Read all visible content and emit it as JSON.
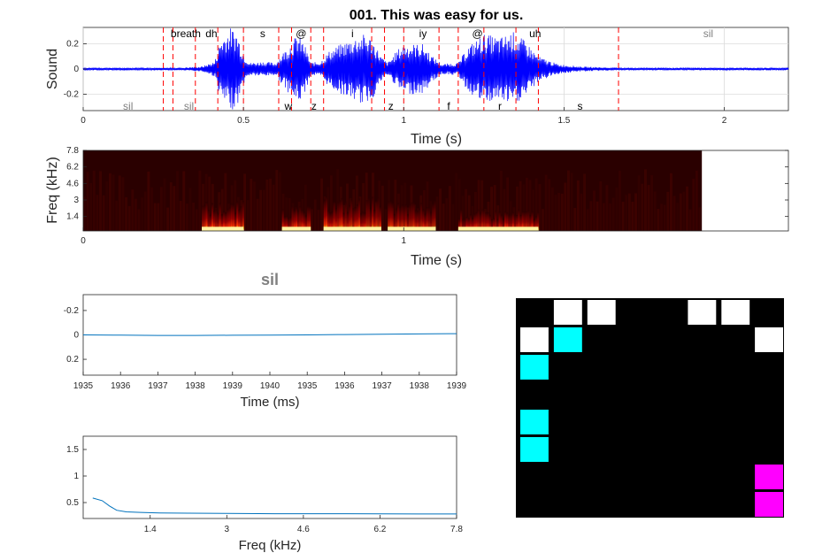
{
  "title": "001. This was easy for us.",
  "colors": {
    "waveform": "#0000ff",
    "boundary": "#ff0000",
    "detail_line": "#0072bd",
    "breath": "#0000ff",
    "silence_label": "#808080",
    "cyan": "#00ffff",
    "magenta": "#ff00ff"
  },
  "chart_data": [
    {
      "type": "line",
      "name": "waveform",
      "ylabel": "Sound",
      "xlabel": "Time (s)",
      "xlim": [
        0,
        2.2
      ],
      "ylim": [
        -0.33,
        0.33
      ],
      "xticks": [
        0,
        0.5,
        1,
        1.5,
        2
      ],
      "xtick_labels": [
        "0",
        "0.5",
        "1",
        "1.5",
        "2"
      ],
      "yticks": [
        0.2,
        0,
        -0.2
      ],
      "ytick_labels": [
        "0.2",
        "0",
        "-0.2"
      ],
      "grid": true,
      "boundaries": [
        0.25,
        0.28,
        0.35,
        0.42,
        0.5,
        0.61,
        0.65,
        0.71,
        0.75,
        0.9,
        0.94,
        1.0,
        1.11,
        1.17,
        1.25,
        1.35,
        1.42,
        1.67
      ],
      "segments": [
        {
          "label": "sil",
          "t": 0.14,
          "row": "bottom",
          "style": "silence"
        },
        {
          "label": "breath",
          "t": 0.32,
          "row": "top",
          "style": "breath"
        },
        {
          "label": "sil",
          "t": 0.33,
          "row": "bottom",
          "style": "silence"
        },
        {
          "label": "dh",
          "t": 0.4,
          "row": "top",
          "style": "phone"
        },
        {
          "label": "s",
          "t": 0.56,
          "row": "top",
          "style": "phone"
        },
        {
          "label": "w",
          "t": 0.64,
          "row": "bottom",
          "style": "phone"
        },
        {
          "label": "@",
          "t": 0.68,
          "row": "top",
          "style": "phone"
        },
        {
          "label": "z",
          "t": 0.72,
          "row": "bottom",
          "style": "phone"
        },
        {
          "label": "i",
          "t": 0.84,
          "row": "top",
          "style": "phone"
        },
        {
          "label": "z",
          "t": 0.96,
          "row": "bottom",
          "style": "phone"
        },
        {
          "label": "iy",
          "t": 1.06,
          "row": "top",
          "style": "phone"
        },
        {
          "label": "f",
          "t": 1.14,
          "row": "bottom",
          "style": "phone"
        },
        {
          "label": "@",
          "t": 1.23,
          "row": "top",
          "style": "phone"
        },
        {
          "label": "r",
          "t": 1.3,
          "row": "bottom",
          "style": "phone"
        },
        {
          "label": "uh",
          "t": 1.41,
          "row": "top",
          "style": "phone"
        },
        {
          "label": "s",
          "t": 1.55,
          "row": "bottom",
          "style": "phone"
        },
        {
          "label": "sil",
          "t": 1.95,
          "row": "top",
          "style": "silence"
        }
      ],
      "envelope": [
        [
          0,
          0.01
        ],
        [
          0.2,
          0.01
        ],
        [
          0.3,
          0.01
        ],
        [
          0.37,
          0.02
        ],
        [
          0.41,
          0.06
        ],
        [
          0.43,
          0.25
        ],
        [
          0.46,
          0.33
        ],
        [
          0.48,
          0.3
        ],
        [
          0.5,
          0.12
        ],
        [
          0.52,
          0.05
        ],
        [
          0.56,
          0.06
        ],
        [
          0.6,
          0.05
        ],
        [
          0.62,
          0.12
        ],
        [
          0.65,
          0.22
        ],
        [
          0.67,
          0.28
        ],
        [
          0.69,
          0.2
        ],
        [
          0.71,
          0.05
        ],
        [
          0.74,
          0.06
        ],
        [
          0.77,
          0.15
        ],
        [
          0.82,
          0.22
        ],
        [
          0.87,
          0.28
        ],
        [
          0.9,
          0.25
        ],
        [
          0.93,
          0.1
        ],
        [
          0.95,
          0.05
        ],
        [
          0.98,
          0.15
        ],
        [
          1.0,
          0.2
        ],
        [
          1.03,
          0.2
        ],
        [
          1.06,
          0.2
        ],
        [
          1.09,
          0.1
        ],
        [
          1.12,
          0.04
        ],
        [
          1.17,
          0.05
        ],
        [
          1.2,
          0.18
        ],
        [
          1.25,
          0.28
        ],
        [
          1.3,
          0.25
        ],
        [
          1.34,
          0.3
        ],
        [
          1.38,
          0.22
        ],
        [
          1.42,
          0.1
        ],
        [
          1.48,
          0.04
        ],
        [
          1.55,
          0.02
        ],
        [
          1.67,
          0.01
        ],
        [
          2.2,
          0.01
        ]
      ]
    },
    {
      "type": "heatmap",
      "name": "spectrogram",
      "ylabel": "Freq (kHz)",
      "xlabel": "Time (s)",
      "xlim": [
        0,
        2.2
      ],
      "ylim": [
        0,
        7.8
      ],
      "xticks": [
        0,
        1
      ],
      "xtick_labels": [
        "0",
        "1"
      ],
      "yticks": [
        1.4,
        3,
        4.6,
        6.2,
        7.8
      ],
      "ytick_labels": [
        "1.4",
        "3",
        "4.6",
        "6.2",
        "7.8"
      ],
      "data_end": 1.93,
      "energy": [
        {
          "start": 0.37,
          "end": 0.5,
          "level": 1.0,
          "f_top": 3.0
        },
        {
          "start": 0.62,
          "end": 0.71,
          "level": 0.9,
          "f_top": 2.5
        },
        {
          "start": 0.75,
          "end": 0.93,
          "level": 0.85,
          "f_top": 3.4
        },
        {
          "start": 0.95,
          "end": 1.1,
          "level": 0.7,
          "f_top": 3.0
        },
        {
          "start": 1.17,
          "end": 1.42,
          "level": 0.95,
          "f_top": 2.2
        }
      ]
    },
    {
      "type": "line",
      "name": "segment-waveform",
      "title": "sil",
      "xlabel": "Time (ms)",
      "xtick_labels": [
        "1935",
        "1936",
        "1937",
        "1938",
        "1939",
        "1940",
        "1935",
        "1936",
        "1937",
        "1938",
        "1939"
      ],
      "ylim": [
        -0.33,
        0.33
      ],
      "y_reversed": true,
      "yticks": [
        -0.2,
        0,
        0.2
      ],
      "ytick_labels": [
        "-0.2",
        "0",
        "0.2"
      ],
      "x": [
        0,
        0.1,
        0.2,
        0.3,
        0.4,
        0.5,
        0.6,
        0.7,
        0.8,
        0.9,
        1.0
      ],
      "y": [
        0.0,
        0.002,
        0.004,
        0.004,
        0.003,
        0.002,
        0.0,
        -0.003,
        -0.006,
        -0.008,
        -0.01
      ]
    },
    {
      "type": "line",
      "name": "segment-spectrum",
      "xlabel": "Freq (kHz)",
      "xlim": [
        0,
        7.8
      ],
      "ylim": [
        0.2,
        1.75
      ],
      "xticks": [
        1.4,
        3,
        4.6,
        6.2,
        7.8
      ],
      "xtick_labels": [
        "1.4",
        "3",
        "4.6",
        "6.2",
        "7.8"
      ],
      "yticks": [
        0.5,
        1,
        1.5
      ],
      "ytick_labels": [
        "0.5",
        "1",
        "1.5"
      ],
      "x": [
        0.2,
        0.4,
        0.55,
        0.7,
        0.9,
        1.2,
        1.6,
        2.2,
        3.0,
        4.0,
        5.5,
        7.0,
        7.8
      ],
      "y": [
        0.35,
        0.3,
        0.2,
        0.12,
        0.09,
        0.08,
        0.07,
        0.065,
        0.06,
        0.055,
        0.055,
        0.05,
        0.05
      ]
    },
    {
      "type": "heatmap",
      "name": "phone-grid",
      "rows": 8,
      "cols": 8,
      "cells": [
        {
          "r": 0,
          "c": 1,
          "color": "white"
        },
        {
          "r": 0,
          "c": 2,
          "color": "white"
        },
        {
          "r": 0,
          "c": 5,
          "color": "white"
        },
        {
          "r": 0,
          "c": 6,
          "color": "white"
        },
        {
          "r": 1,
          "c": 0,
          "color": "white"
        },
        {
          "r": 1,
          "c": 1,
          "color": "cyan"
        },
        {
          "r": 1,
          "c": 7,
          "color": "white"
        },
        {
          "r": 2,
          "c": 0,
          "color": "cyan"
        },
        {
          "r": 4,
          "c": 0,
          "color": "cyan"
        },
        {
          "r": 5,
          "c": 0,
          "color": "cyan"
        },
        {
          "r": 6,
          "c": 7,
          "color": "magenta"
        },
        {
          "r": 7,
          "c": 7,
          "color": "magenta"
        }
      ]
    }
  ]
}
